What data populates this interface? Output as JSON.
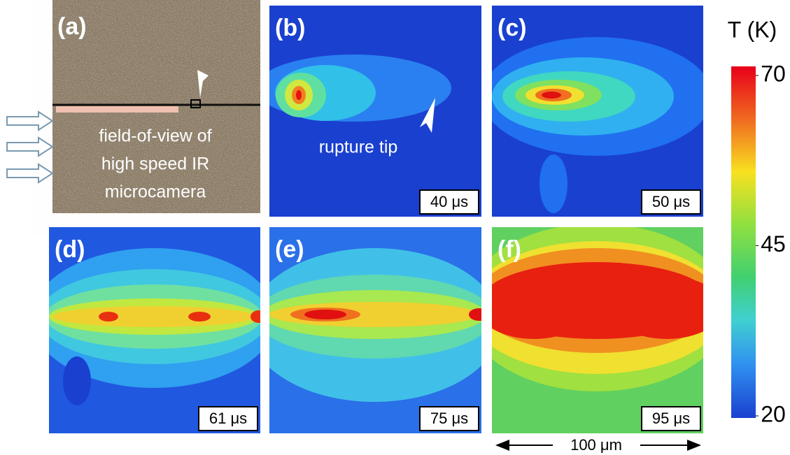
{
  "panels": [
    {
      "label": "(a)",
      "text": [
        "field-of-view of",
        "high speed IR",
        "microcamera"
      ]
    },
    {
      "label": "(b)",
      "annotation": "rupture tip",
      "time": "40 μs"
    },
    {
      "label": "(c)",
      "time": "50 μs"
    },
    {
      "label": "(d)",
      "time": "61 μs"
    },
    {
      "label": "(e)",
      "time": "75 μs"
    },
    {
      "label": "(f)",
      "time": "95 μs"
    }
  ],
  "colorbar": {
    "title": "T (K)",
    "range": [
      20,
      70
    ],
    "ticks": [
      20,
      45,
      70
    ]
  },
  "scale_bar": "100 μm"
}
